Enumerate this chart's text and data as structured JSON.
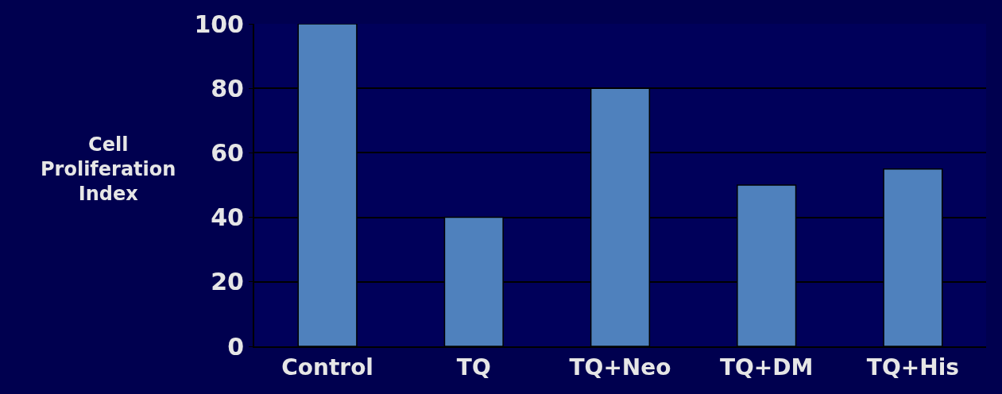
{
  "chart_data": {
    "type": "bar",
    "ylabel": "Cell Proliferation Index",
    "categories": [
      "Control",
      "TQ",
      "TQ+Neo",
      "TQ+DM",
      "TQ+His"
    ],
    "values": [
      100,
      40,
      80,
      50,
      55
    ],
    "color": "#4f81bd",
    "ylim": [
      0,
      100
    ],
    "yticks": [
      0,
      20,
      40,
      60,
      80,
      100
    ],
    "grid": "y"
  }
}
